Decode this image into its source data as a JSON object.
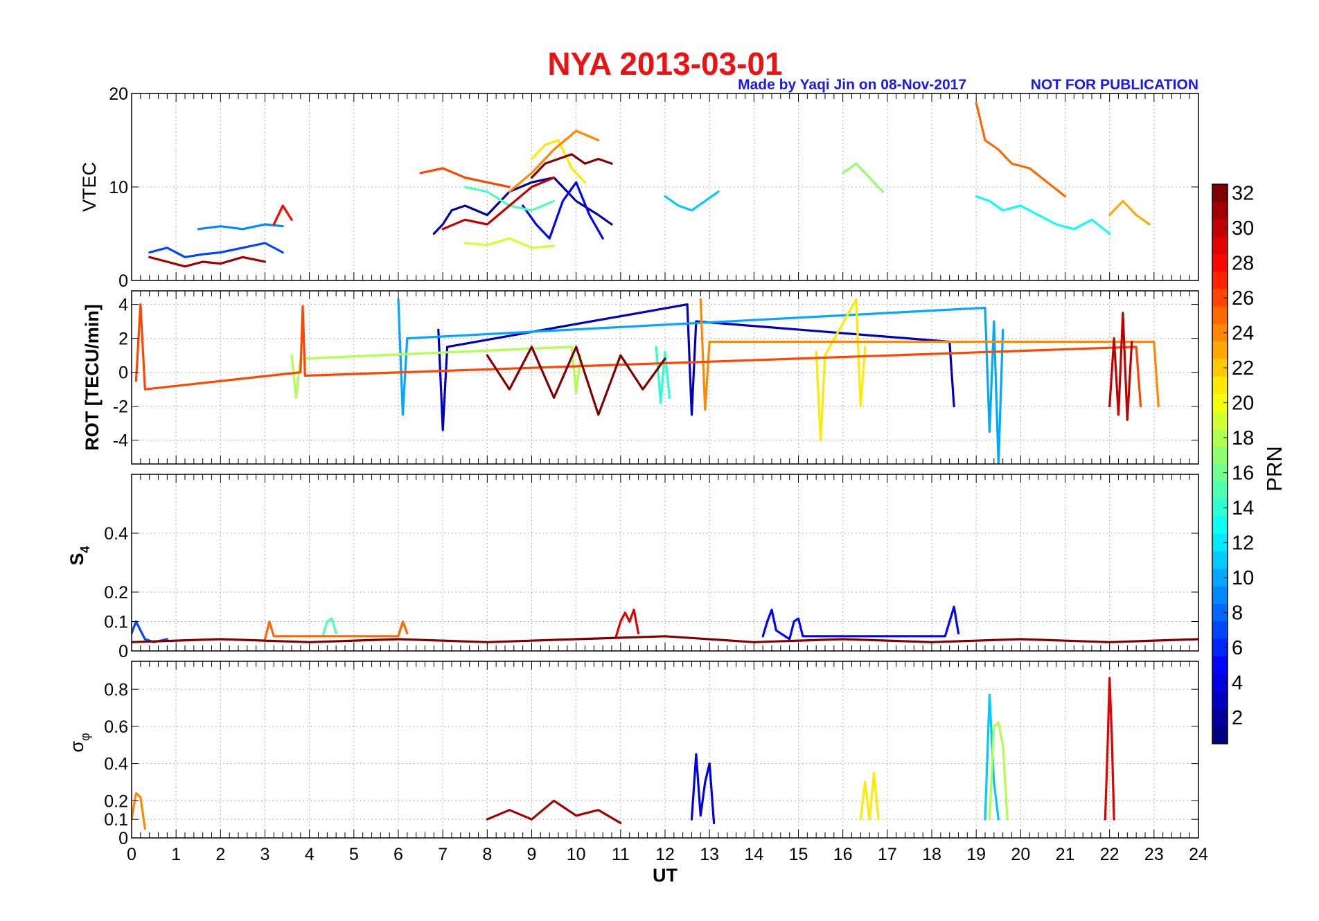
{
  "chart_data": {
    "type": "line",
    "title": "NYA   2013-03-01",
    "credit": "Made by Yaqi Jin on 08-Nov-2017",
    "notice": "NOT FOR PUBLICATION",
    "xlabel": "UT",
    "xlim": [
      0,
      24
    ],
    "xticks": [
      0,
      1,
      2,
      3,
      4,
      5,
      6,
      7,
      8,
      9,
      10,
      11,
      12,
      13,
      14,
      15,
      16,
      17,
      18,
      19,
      20,
      21,
      22,
      23,
      24
    ],
    "grid": true,
    "colors": {
      "title": "#ee1111",
      "credit": "#1a1aee",
      "frame": "#000000"
    },
    "colorbar": {
      "label": "PRN",
      "range": [
        1,
        32
      ],
      "ticks": [
        2,
        4,
        6,
        8,
        10,
        12,
        14,
        16,
        18,
        20,
        22,
        24,
        26,
        28,
        30,
        32
      ],
      "colormap": "jet"
    },
    "panels": [
      {
        "id": "vtec",
        "ylabel": "VTEC",
        "ylim": [
          0,
          20
        ],
        "yticks": [
          0,
          10,
          20
        ],
        "series": [
          {
            "prn": 2,
            "x": [
              6.8,
              7.0,
              7.2,
              7.5,
              8.0,
              8.5,
              9.0,
              9.5,
              10.0,
              10.5,
              10.8
            ],
            "y": [
              5.0,
              6.0,
              7.5,
              8.0,
              7.0,
              9.5,
              10.5,
              11.0,
              8.5,
              7.0,
              6.0
            ]
          },
          {
            "prn": 5,
            "x": [
              8.8,
              9.1,
              9.4,
              9.7,
              10.0,
              10.3,
              10.6
            ],
            "y": [
              8.0,
              6.0,
              4.5,
              8.5,
              10.5,
              7.0,
              4.5
            ]
          },
          {
            "prn": 7,
            "x": [
              0.4,
              0.8,
              1.2,
              1.6,
              2.0,
              2.5,
              3.0,
              3.4
            ],
            "y": [
              3.0,
              3.5,
              2.5,
              2.8,
              3.0,
              3.5,
              4.0,
              3.0
            ]
          },
          {
            "prn": 9,
            "x": [
              1.5,
              2.0,
              2.5,
              3.0,
              3.4
            ],
            "y": [
              5.5,
              5.8,
              5.5,
              6.0,
              5.8
            ]
          },
          {
            "prn": 11,
            "x": [
              12.0,
              12.3,
              12.6,
              12.9,
              13.2
            ],
            "y": [
              9.0,
              8.0,
              7.5,
              8.5,
              9.5
            ]
          },
          {
            "prn": 13,
            "x": [
              19.0,
              19.3,
              19.6,
              20.0,
              20.4,
              20.8,
              21.2,
              21.6,
              22.0
            ],
            "y": [
              9.0,
              8.5,
              7.5,
              8.0,
              7.0,
              6.0,
              5.5,
              6.5,
              5.0
            ]
          },
          {
            "prn": 15,
            "x": [
              7.5,
              8.0,
              8.5,
              9.0,
              9.5
            ],
            "y": [
              10.0,
              9.5,
              8.0,
              7.5,
              8.5
            ]
          },
          {
            "prn": 17,
            "x": [
              16.0,
              16.3,
              16.6,
              16.9
            ],
            "y": [
              11.5,
              12.5,
              11.0,
              9.5
            ]
          },
          {
            "prn": 19,
            "x": [
              7.5,
              8.0,
              8.5,
              9.0,
              9.5
            ],
            "y": [
              4.0,
              3.8,
              4.5,
              3.5,
              3.7
            ]
          },
          {
            "prn": 21,
            "x": [
              9.0,
              9.3,
              9.6,
              9.9,
              10.2
            ],
            "y": [
              13.0,
              14.5,
              15.0,
              12.0,
              10.5
            ]
          },
          {
            "prn": 23,
            "x": [
              22.0,
              22.3,
              22.6,
              22.9
            ],
            "y": [
              7.0,
              8.5,
              7.0,
              6.0
            ]
          },
          {
            "prn": 24,
            "x": [
              8.5,
              9.0,
              9.5,
              10.0,
              10.5
            ],
            "y": [
              9.5,
              11.5,
              14.0,
              16.0,
              15.0
            ]
          },
          {
            "prn": 25,
            "x": [
              19.0,
              19.2,
              19.5,
              19.8,
              20.2,
              20.6,
              21.0
            ],
            "y": [
              19.0,
              15.0,
              14.0,
              12.5,
              12.0,
              10.5,
              9.0
            ]
          },
          {
            "prn": 26,
            "x": [
              6.5,
              7.0,
              7.5,
              8.0,
              8.5
            ],
            "y": [
              11.5,
              12.0,
              11.0,
              10.5,
              10.0
            ]
          },
          {
            "prn": 28,
            "x": [
              3.2,
              3.4,
              3.6
            ],
            "y": [
              6.0,
              8.0,
              6.5
            ]
          },
          {
            "prn": 30,
            "x": [
              7.0,
              7.5,
              8.0,
              8.5,
              9.0,
              9.5
            ],
            "y": [
              5.5,
              6.5,
              6.0,
              8.0,
              10.0,
              11.0
            ]
          },
          {
            "prn": 31,
            "x": [
              0.4,
              0.8,
              1.2,
              1.6,
              2.0,
              2.5,
              3.0
            ],
            "y": [
              2.5,
              2.0,
              1.5,
              2.0,
              1.8,
              2.5,
              2.0
            ]
          },
          {
            "prn": 32,
            "x": [
              9.0,
              9.3,
              9.6,
              9.9,
              10.2,
              10.5,
              10.8
            ],
            "y": [
              11.0,
              12.5,
              13.0,
              13.5,
              12.5,
              13.0,
              12.5
            ]
          }
        ]
      },
      {
        "id": "rot",
        "ylabel": "ROT [TECU/min]",
        "ylim": [
          -5.4,
          4.8
        ],
        "yticks": [
          -4,
          -2,
          0,
          2,
          4
        ],
        "series": [
          {
            "prn": 3,
            "x": [
              6.9,
              7.0,
              7.1,
              12.5,
              12.6,
              12.7,
              18.4,
              18.5
            ],
            "y": [
              2.5,
              -3.4,
              1.5,
              4.0,
              -2.5,
              3.0,
              1.8,
              -2.0
            ]
          },
          {
            "prn": 10,
            "x": [
              6.0,
              6.1,
              6.2,
              19.2,
              19.3,
              19.4,
              19.5,
              19.6
            ],
            "y": [
              4.3,
              -2.5,
              2.0,
              3.8,
              -3.5,
              3.0,
              -5.4,
              2.5
            ]
          },
          {
            "prn": 14,
            "x": [
              11.8,
              11.9,
              12.0,
              12.1
            ],
            "y": [
              1.5,
              -1.8,
              1.2,
              -1.5
            ]
          },
          {
            "prn": 18,
            "x": [
              3.6,
              3.7,
              3.8,
              9.9,
              10.0,
              10.1
            ],
            "y": [
              1.0,
              -1.5,
              0.8,
              1.5,
              -1.2,
              1.0
            ]
          },
          {
            "prn": 21,
            "x": [
              15.4,
              15.5,
              15.6,
              16.3,
              16.4,
              16.5
            ],
            "y": [
              1.2,
              -4.0,
              1.0,
              4.3,
              -2.0,
              1.5
            ]
          },
          {
            "prn": 24,
            "x": [
              12.8,
              12.9,
              13.0,
              23.0,
              23.1
            ],
            "y": [
              4.3,
              -2.2,
              1.8,
              1.8,
              -2.0
            ]
          },
          {
            "prn": 26,
            "x": [
              0.1,
              0.2,
              0.3,
              3.8,
              3.85,
              3.9,
              22.6,
              22.7
            ],
            "y": [
              -0.5,
              4.0,
              -1.0,
              0.0,
              3.9,
              -0.2,
              1.5,
              -2.0
            ]
          },
          {
            "prn": 30,
            "x": [
              22.0,
              22.1,
              22.2,
              22.3,
              22.4,
              22.5
            ],
            "y": [
              -2.0,
              2.0,
              -2.5,
              3.5,
              -2.8,
              1.8
            ]
          },
          {
            "prn": 32,
            "x": [
              8.0,
              8.5,
              9.0,
              9.5,
              10.0,
              10.5,
              11.0,
              11.5,
              12.0
            ],
            "y": [
              1.0,
              -1.0,
              1.5,
              -1.5,
              1.5,
              -2.5,
              1.0,
              -1.0,
              0.8
            ]
          }
        ]
      },
      {
        "id": "s4",
        "ylabel": "S4",
        "ylim": [
          0,
          0.6
        ],
        "yticks": [
          0,
          0.1,
          0.2,
          0.4
        ],
        "series": [
          {
            "prn": 5,
            "x": [
              14.2,
              14.3,
              14.4,
              14.5,
              14.8,
              14.9,
              15.0,
              15.1,
              18.3,
              18.4,
              18.5,
              18.6
            ],
            "y": [
              0.05,
              0.1,
              0.14,
              0.07,
              0.04,
              0.1,
              0.11,
              0.05,
              0.05,
              0.1,
              0.15,
              0.06
            ]
          },
          {
            "prn": 7,
            "x": [
              0.0,
              0.1,
              0.2,
              0.3,
              0.5,
              0.8
            ],
            "y": [
              0.06,
              0.1,
              0.07,
              0.04,
              0.03,
              0.04
            ]
          },
          {
            "prn": 15,
            "x": [
              4.3,
              4.4,
              4.5,
              4.6
            ],
            "y": [
              0.05,
              0.1,
              0.11,
              0.06
            ]
          },
          {
            "prn": 25,
            "x": [
              3.0,
              3.1,
              3.2,
              6.0,
              6.1,
              6.2
            ],
            "y": [
              0.04,
              0.1,
              0.05,
              0.05,
              0.1,
              0.06
            ]
          },
          {
            "prn": 29,
            "x": [
              10.9,
              11.0,
              11.1,
              11.2,
              11.3,
              11.4
            ],
            "y": [
              0.05,
              0.1,
              0.13,
              0.1,
              0.14,
              0.06
            ]
          },
          {
            "prn": 32,
            "x": [
              0,
              2,
              4,
              6,
              8,
              10,
              12,
              14,
              16,
              18,
              20,
              22,
              24
            ],
            "y": [
              0.03,
              0.04,
              0.03,
              0.04,
              0.03,
              0.04,
              0.05,
              0.03,
              0.04,
              0.03,
              0.04,
              0.03,
              0.04
            ]
          }
        ]
      },
      {
        "id": "sigma-phi",
        "ylabel": "σφ",
        "ylim": [
          0,
          0.95
        ],
        "yticks": [
          0,
          0.1,
          0.2,
          0.4,
          0.6,
          0.8
        ],
        "series": [
          {
            "prn": 4,
            "x": [
              12.6,
              12.7,
              12.8,
              12.9,
              13.0,
              13.1
            ],
            "y": [
              0.1,
              0.45,
              0.12,
              0.3,
              0.4,
              0.08
            ]
          },
          {
            "prn": 11,
            "x": [
              19.2,
              19.3,
              19.4,
              19.5
            ],
            "y": [
              0.1,
              0.77,
              0.3,
              0.1
            ]
          },
          {
            "prn": 18,
            "x": [
              19.3,
              19.4,
              19.5,
              19.6,
              19.7
            ],
            "y": [
              0.1,
              0.6,
              0.62,
              0.5,
              0.1
            ]
          },
          {
            "prn": 21,
            "x": [
              16.4,
              16.5,
              16.6,
              16.7,
              16.8
            ],
            "y": [
              0.1,
              0.3,
              0.1,
              0.35,
              0.1
            ]
          },
          {
            "prn": 24,
            "x": [
              0.0,
              0.1,
              0.2,
              0.3
            ],
            "y": [
              0.1,
              0.24,
              0.22,
              0.05
            ]
          },
          {
            "prn": 29,
            "x": [
              21.9,
              21.95,
              22.0,
              22.05,
              22.1
            ],
            "y": [
              0.1,
              0.45,
              0.86,
              0.55,
              0.1
            ]
          },
          {
            "prn": 31,
            "x": [
              8.0,
              8.5,
              9.0,
              9.5,
              10.0,
              10.5,
              11.0
            ],
            "y": [
              0.1,
              0.15,
              0.1,
              0.2,
              0.12,
              0.15,
              0.08
            ]
          }
        ]
      }
    ]
  }
}
